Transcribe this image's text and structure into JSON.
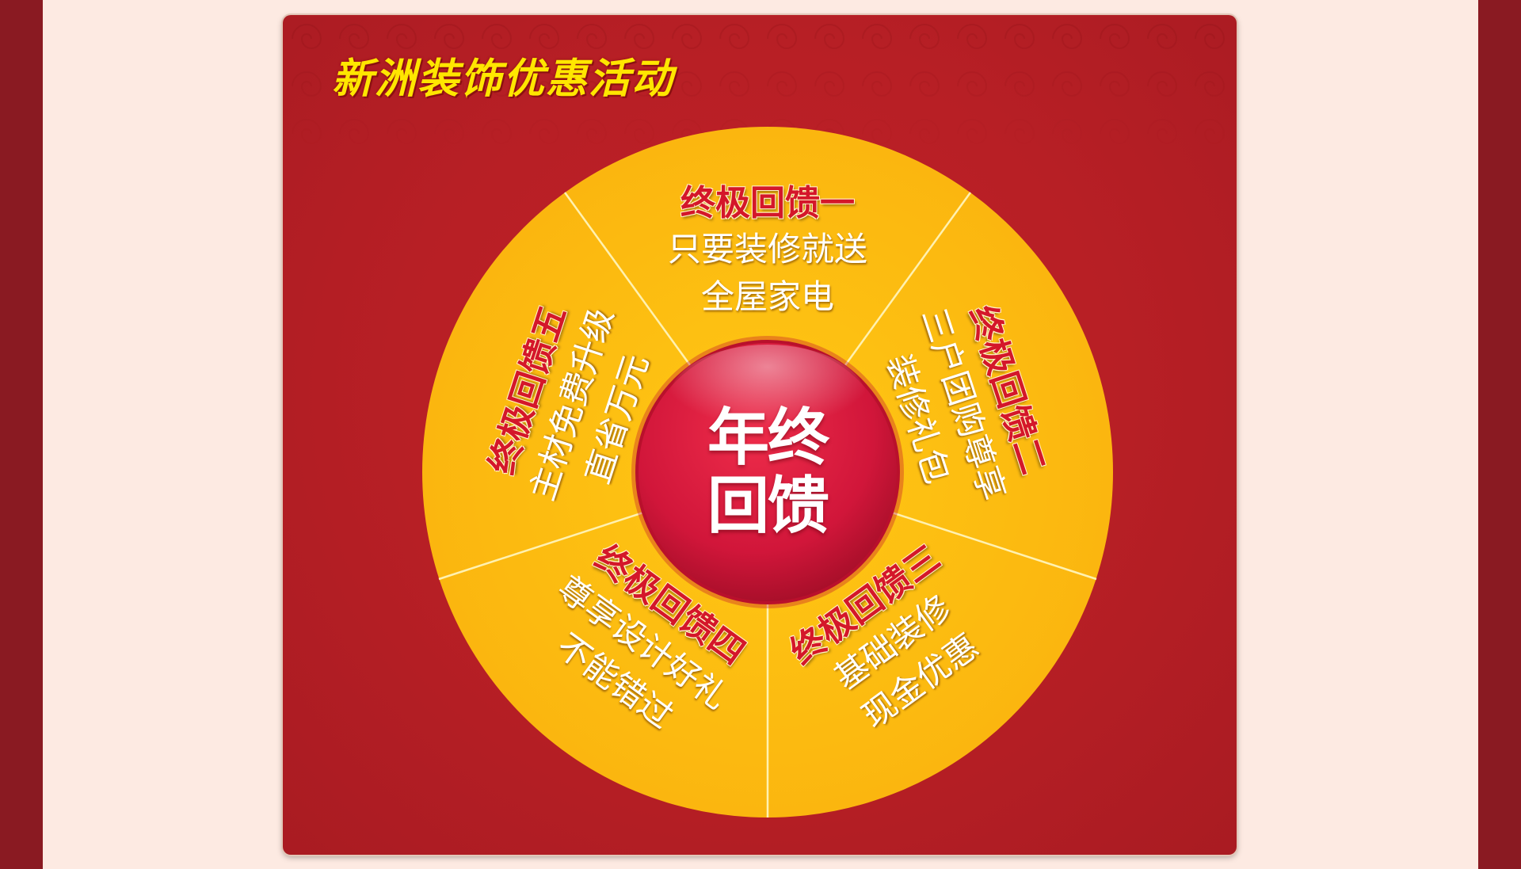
{
  "page": {
    "background": "#fdeae2",
    "side_band_color": "#8a1a22"
  },
  "panel": {
    "title": "新洲装饰优惠活动",
    "background_color": "#b71f25",
    "title_color": "#ffe600"
  },
  "wheel": {
    "fill_color": "#fdbd10",
    "center_color": "#d41a36",
    "center_label": "年终回馈",
    "segments": [
      {
        "title": "终极回馈一",
        "lines": [
          "只要装修就送",
          "全屋家电"
        ]
      },
      {
        "title": "终极回馈二",
        "lines": [
          "三户团购尊享",
          "装修礼包"
        ]
      },
      {
        "title": "终极回馈三",
        "lines": [
          "基础装修",
          "现金优惠"
        ]
      },
      {
        "title": "终极回馈四",
        "lines": [
          "尊享设计好礼",
          "不能错过"
        ]
      },
      {
        "title": "终极回馈五",
        "lines": [
          "主材免费升级",
          "直省万元"
        ]
      }
    ]
  }
}
